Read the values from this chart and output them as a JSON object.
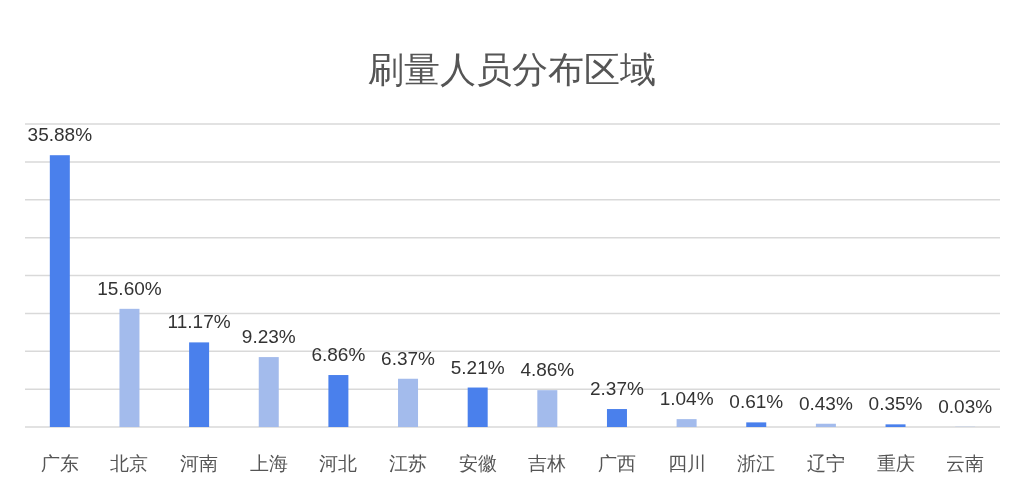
{
  "chart_data": {
    "type": "bar",
    "title": "刷量人员分布区域",
    "categories": [
      "广东",
      "北京",
      "河南",
      "上海",
      "河北",
      "江苏",
      "安徽",
      "吉林",
      "广西",
      "四川",
      "浙江",
      "辽宁",
      "重庆",
      "云南"
    ],
    "values": [
      35.88,
      15.6,
      11.17,
      9.23,
      6.86,
      6.37,
      5.21,
      4.86,
      2.37,
      1.04,
      0.61,
      0.43,
      0.35,
      0.03
    ],
    "value_labels": [
      "35.88%",
      "15.60%",
      "11.17%",
      "9.23%",
      "6.86%",
      "6.37%",
      "5.21%",
      "4.86%",
      "2.37%",
      "1.04%",
      "0.61%",
      "0.43%",
      "0.35%",
      "0.03%"
    ],
    "colors": [
      "#4a80ec",
      "#a3bbec",
      "#4a80ec",
      "#a3bbec",
      "#4a80ec",
      "#a3bbec",
      "#4a80ec",
      "#a3bbec",
      "#4a80ec",
      "#a3bbec",
      "#4a80ec",
      "#a3bbec",
      "#4a80ec",
      "#a3bbec"
    ],
    "ylim": [
      0,
      40
    ],
    "yticks": [
      {
        "value": 0,
        "label": null
      },
      {
        "value": 5,
        "label": null
      },
      {
        "value": 10,
        "label": null
      },
      {
        "value": 15,
        "label": null
      },
      {
        "value": 20,
        "label": null
      },
      {
        "value": 25,
        "label": null
      },
      {
        "value": 30,
        "label": null
      },
      {
        "value": 35,
        "label": null
      },
      {
        "value": 40,
        "label": null
      }
    ],
    "grid": "y"
  }
}
